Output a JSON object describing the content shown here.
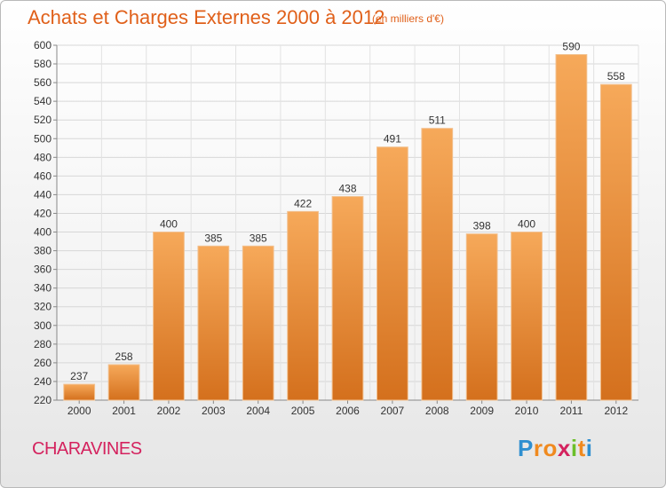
{
  "header": {
    "title": "Achats et Charges Externes 2000 à 2012",
    "subtitle": "(en milliers d'€)"
  },
  "footer": {
    "commune": "CHARAVINES",
    "logo": {
      "letters": [
        "P",
        "r",
        "o",
        "x",
        "i",
        "t",
        "i"
      ],
      "colors": [
        "#2f8fd0",
        "#f08a1f",
        "#f08a1f",
        "#d4225e",
        "#6bbf2a",
        "#f08a1f",
        "#2f8fd0"
      ]
    }
  },
  "chart_data": {
    "type": "bar",
    "title": "Achats et Charges Externes 2000 à 2012",
    "subtitle": "(en milliers d'€)",
    "categories": [
      "2000",
      "2001",
      "2002",
      "2003",
      "2004",
      "2005",
      "2006",
      "2007",
      "2008",
      "2009",
      "2010",
      "2011",
      "2012"
    ],
    "values": [
      237,
      258,
      400,
      385,
      385,
      422,
      438,
      491,
      511,
      398,
      400,
      590,
      558
    ],
    "ylim": [
      220,
      600
    ],
    "ytick_step": 20,
    "grid": true,
    "bar_color_top": "#f6a95a",
    "bar_color_bottom": "#d4701d"
  }
}
